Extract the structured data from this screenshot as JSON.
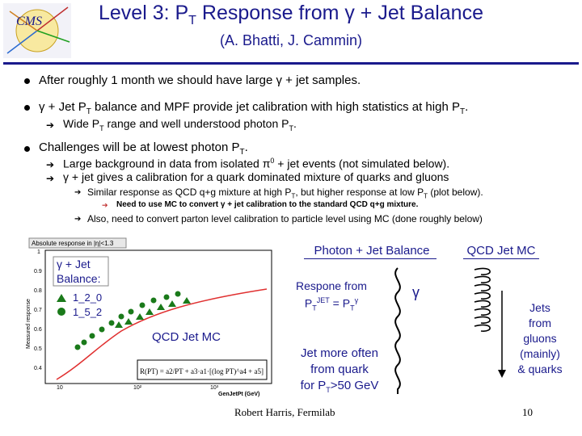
{
  "header": {
    "title": "Level 3: PT Response from γ + Jet Balance",
    "subtitle": "(A. Bhatti, J. Cammin)"
  },
  "bullets": {
    "b1": "After roughly 1 month we should have large γ + jet samples.",
    "b2": "γ + Jet PT balance and MPF provide jet calibration with high statistics at high PT.",
    "b2_sub": "Wide PT range and well understood photon PT.",
    "b3": "Challenges will be at lowest photon PT.",
    "b3_sub1": "Large background in data from isolated π0 + jet events (not simulated below).",
    "b3_sub2": "γ + jet gives a calibration for a quark dominated mixture of quarks and gluons",
    "b3_sub2_a": "Similar response as QCD q+g mixture at high PT, but higher response at low PT (plot below).",
    "b3_sub2_a_i": "Need to use MC to convert γ + jet calibration to the standard QCD q+g mixture.",
    "b3_sub2_b": "Also, need to convert parton level calibration to particle level using MC (done roughly below)"
  },
  "plot": {
    "frame_title": "Absolute response in |η|<1.3",
    "legend_title": "γ + Jet Balance:",
    "legend_items": [
      "1_2_0",
      "1_5_2"
    ],
    "qcd_label": "QCD Jet MC",
    "yaxis": "Measured response",
    "xaxis": "GenJetPt (GeV)",
    "yticks": [
      "1",
      "0.9",
      "0.8",
      "0.7",
      "0.6",
      "0.5",
      "0.4"
    ],
    "xticks": [
      "10",
      "10²",
      "10³"
    ],
    "formula": "R(PT) = a2/PT + a3·a1·[(log PT)^a4 + a5]"
  },
  "diagram": {
    "photon_jet_balance": "Photon + Jet Balance",
    "qcd_jet_mc": "QCD Jet MC",
    "respone": "Respone from PTJET = PTγ",
    "gamma": "γ",
    "jet_quark": "Jet more often from quark for PT>50 GeV",
    "jets_gluons": "Jets from gluons (mainly) & quarks"
  },
  "footer": {
    "author": "Robert Harris, Fermilab",
    "page": "10"
  },
  "colors": {
    "title": "#1a1a8c",
    "fit": "#e03030",
    "marker": "#1a7a1a"
  }
}
